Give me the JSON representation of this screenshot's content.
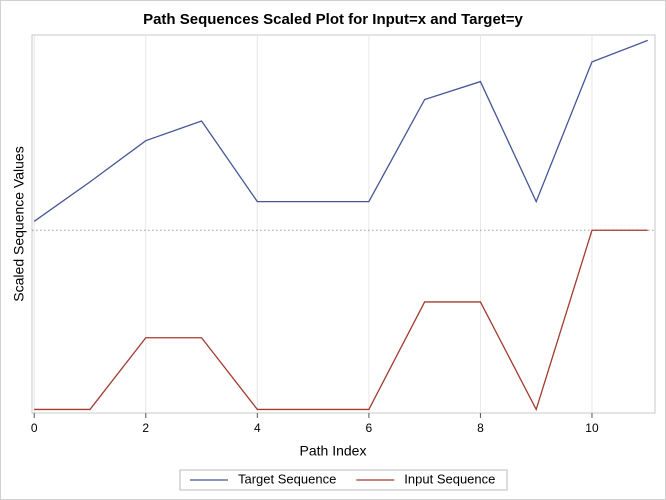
{
  "chart_data": {
    "type": "line",
    "title": "Path Sequences Scaled Plot for Input=x and Target=y",
    "x_label": "Path Index",
    "y_label": "Scaled Sequence Values",
    "x": [
      0,
      1,
      2,
      3,
      4,
      5,
      6,
      7,
      8,
      9,
      10,
      11
    ],
    "series": [
      {
        "name": "Target Sequence",
        "color": "#445694",
        "values": [
          1.05,
          1.27,
          1.5,
          1.61,
          1.16,
          1.16,
          1.16,
          1.73,
          1.83,
          1.16,
          1.94,
          2.06
        ]
      },
      {
        "name": "Input Sequence",
        "color": "#a23a2e",
        "values": [
          0,
          0,
          0.4,
          0.4,
          0,
          0,
          0,
          0.6,
          0.6,
          0,
          1,
          1
        ]
      }
    ],
    "xlim": [
      -0.04,
      11.13
    ],
    "xticks": [
      0,
      2,
      4,
      6,
      8,
      10
    ],
    "ylim": [
      -0.02,
      2.09
    ],
    "refline": 1,
    "grid": true,
    "legend": "bottom"
  }
}
